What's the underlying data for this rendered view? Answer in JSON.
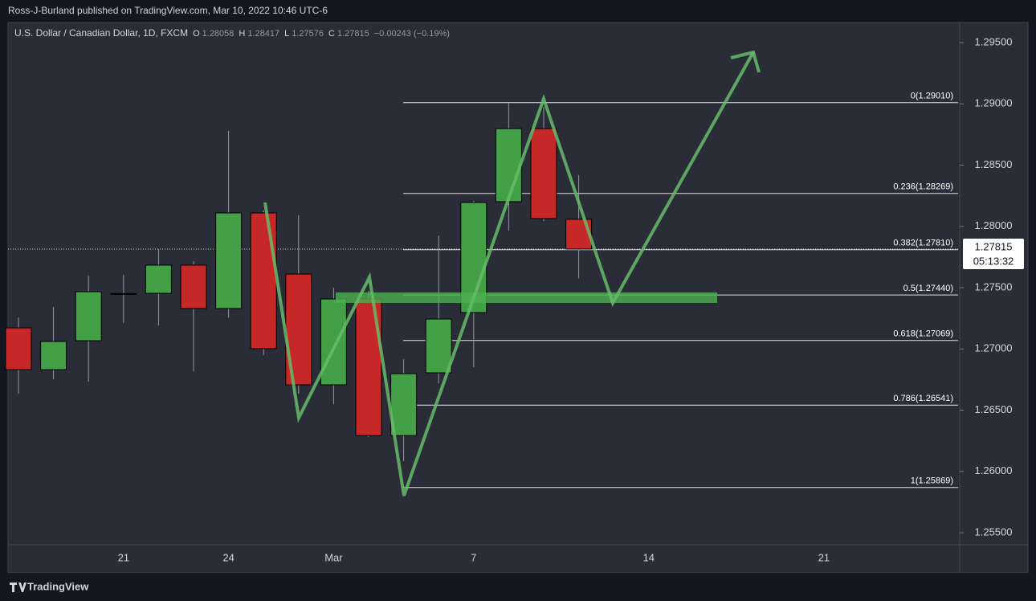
{
  "header": {
    "published": "Ross-J-Burland published on TradingView.com, Mar 10, 2022 10:46 UTC-6",
    "symbol": "U.S. Dollar / Canadian Dollar, 1D, FXCM",
    "o_label": "O",
    "o": 1.28058,
    "h_label": "H",
    "h": 1.28417,
    "l_label": "L",
    "l": 1.27576,
    "c_label": "C",
    "c": 1.27815,
    "change": "−0.00243 (−0.19%)"
  },
  "footer": {
    "logo": "TradingView"
  },
  "chart_data": {
    "type": "candlestick",
    "categories": [
      null,
      null,
      null,
      "21",
      null,
      null,
      "24",
      null,
      null,
      "Mar",
      null,
      null,
      null,
      "7",
      null,
      null,
      null,
      null,
      "14",
      null,
      null,
      null,
      null,
      "21"
    ],
    "open": [
      1.27172,
      1.26831,
      1.27067,
      1.27448,
      1.27454,
      1.27684,
      1.2733,
      1.2811,
      1.27611,
      1.26707,
      1.27408,
      1.26293,
      1.26805,
      1.27297,
      1.28202,
      1.28798,
      1.28058,
      null,
      null,
      null,
      null,
      null,
      null,
      null
    ],
    "high": [
      1.27257,
      1.27343,
      1.27598,
      1.27605,
      1.27815,
      1.27716,
      1.28779,
      1.2813,
      1.2809,
      1.275,
      1.27474,
      1.26916,
      1.27926,
      1.28208,
      1.29008,
      1.28975,
      1.28417,
      null,
      null,
      null,
      null,
      null,
      null,
      null
    ],
    "low": [
      1.26634,
      1.26752,
      1.26733,
      1.27211,
      1.27192,
      1.26818,
      1.27257,
      1.26949,
      1.26634,
      1.26549,
      1.2628,
      1.26084,
      1.2672,
      1.26851,
      1.27966,
      1.28044,
      1.27576,
      null,
      null,
      null,
      null,
      null,
      null,
      null
    ],
    "close": [
      1.26831,
      1.27061,
      1.27467,
      1.27452,
      1.27684,
      1.2733,
      1.2811,
      1.27002,
      1.26707,
      1.27408,
      1.26293,
      1.26798,
      1.27244,
      1.28195,
      1.28798,
      1.28064,
      1.27815,
      null,
      null,
      null,
      null,
      null,
      null,
      null
    ],
    "up_color": "#43a047",
    "down_color": "#c62828",
    "ylim": [
      1.25402,
      1.29664
    ],
    "yticks": [
      {
        "value": 1.255,
        "label": "1.25500"
      },
      {
        "value": 1.26,
        "label": "1.26000"
      },
      {
        "value": 1.265,
        "label": "1.26500"
      },
      {
        "value": 1.27,
        "label": "1.27000"
      },
      {
        "value": 1.275,
        "label": "1.27500"
      },
      {
        "value": 1.28,
        "label": "1.28000"
      },
      {
        "value": 1.285,
        "label": "1.28500"
      },
      {
        "value": 1.29,
        "label": "1.29000"
      },
      {
        "value": 1.295,
        "label": "1.29500"
      }
    ],
    "fib_levels": [
      {
        "value": 1.2901,
        "label": "0(1.29010)"
      },
      {
        "value": 1.28269,
        "label": "0.236(1.28269)"
      },
      {
        "value": 1.2781,
        "label": "0.382(1.27810)"
      },
      {
        "value": 1.2744,
        "label": "0.5(1.27440)"
      },
      {
        "value": 1.27069,
        "label": "0.618(1.27069)"
      },
      {
        "value": 1.26541,
        "label": "0.786(1.26541)"
      },
      {
        "value": 1.25869,
        "label": "1(1.25869)"
      }
    ],
    "last_price": {
      "value": 1.27815,
      "countdown": "05:13:32"
    }
  }
}
